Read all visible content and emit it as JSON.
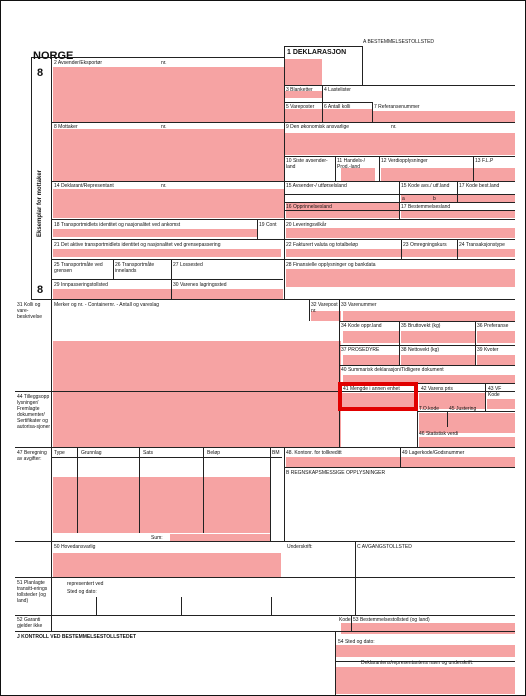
{
  "header": {
    "country": "NORGE",
    "office_label": "A BESTEMMELSESTOLLSTED",
    "declaration_label": "1 DEKLARASJON",
    "copy_number": "8",
    "copy_number_2": "8",
    "side_label": "Eksemplar for mottaker"
  },
  "fields": {
    "f2": "2 Avsender/Eksportør",
    "nr": "nr.",
    "f3": "3 Blanketter",
    "f4": "4 Lastelister",
    "f5": "5 Vareposter",
    "f6": "6 Antall kolli",
    "f7": "7 Referansenummer",
    "f8": "8 Mottaker",
    "f9": "9 Den økonomisk ansvarlige",
    "f10": "10 Siste avsender-land",
    "f11": "11 Handels-/ Prod.-land",
    "f12": "12 Verdiopplysninger",
    "f13": "13 F.L.P",
    "f14": "14 Deklarant/Representant",
    "f15": "15 Avsender-/ utførselsland",
    "f15a": "15 Kode avs./ utf.land",
    "f17a": "17 Kode best.land",
    "f16": "16 Opprinnelsesland",
    "f17": "17 Bestemmelsesland",
    "f18": "18 Transportmidlets identitet og nasjonalitet ved ankomst",
    "f19": "19 Cont",
    "f20": "20 Leveringsvilkår",
    "f21": "21 Det aktive transportmidlets identitet og nasjonalitet ved grensepassering",
    "f22": "22 Fakturert valuta og totalbeløp",
    "f23": "23 Omregningskurs",
    "f24": "24 Transaksjonstype",
    "f25": "25 Transportmåte ved grensen",
    "f26": "26 Transportmåte innelands",
    "f27": "27 Lossested",
    "f28": "28 Finansielle opplysninger og bankdata",
    "f29": "29 Innpasseringstollsted",
    "f30": "30 Varenes lagringssted",
    "f31": "31 Kolli og vare-beskrivelse",
    "f31_text": "Merker og nr. - Containernr. - Antall og vareslag",
    "f32": "32 Varepost nr.",
    "f33": "33 Varenummer",
    "f34": "34 Kode oppr.land",
    "f35": "35 Bruttovekt (kg)",
    "f36": "36 Preferanse",
    "f37": "37 PROSEDYRE",
    "f38": "38 Nettovekt (kg)",
    "f39": "39 Kvoter",
    "f40": "40 Summarisk deklarasjon/Tidligere dokument",
    "f41": "41 Mengde i annen enhet",
    "f42": "42 Varens pris",
    "f43": "43 VF Kode",
    "f44": "44 Tilleggsopp lysninger/ Fremlagte dokumenter/ Sertifikater og autorisa-sjoner",
    "to_kode": "T.O.kode",
    "f45": "45 Justering",
    "f46": "46 Statistisk verdi",
    "f47": "47 Beregning av avgifter:",
    "col_type": "Type",
    "col_grunnlag": "Grunnlag",
    "col_sats": "Sats",
    "col_belop": "Beløp",
    "col_bm": "BM",
    "sum": "Sum:",
    "f48": "48. Kontonr. for tollkreditt",
    "f49": "49 Lagerkode/Godsnummer",
    "fB": "B REGNSKAPSMESSIGE OPPLYSNINGER",
    "f50": "50 Hovedansvarlig",
    "underskrift": "Underskrift:",
    "fC": "C AVGANGSTOLLSTED",
    "f51": "51 Planlagte transitt-erings tollsteder (og land)",
    "representert": "representert ved",
    "sted_dato": "Sted og dato:",
    "f52": "52 Garanti gjelder ikke",
    "kode": "Kode",
    "f53": "53 Bestemmelsestollsted (og land)",
    "fJ": "J KONTROLL VED BESTEMMELSESTOLLSTEDET",
    "f54": "54 Sted og dato:",
    "f54_sig": "Deklarantens/representantens navn og underskrift:",
    "sub_a": "a",
    "sub_b": "b"
  }
}
